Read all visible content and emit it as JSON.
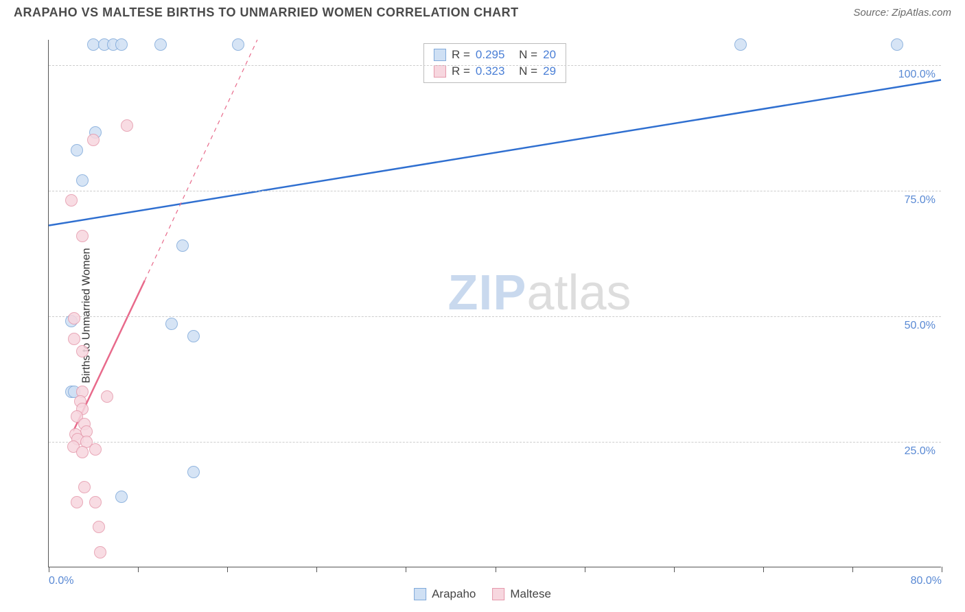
{
  "header": {
    "title": "ARAPAHO VS MALTESE BIRTHS TO UNMARRIED WOMEN CORRELATION CHART",
    "source_prefix": "Source: ",
    "source_name": "ZipAtlas.com"
  },
  "watermark": {
    "part1": "ZIP",
    "part2": "atlas"
  },
  "axes": {
    "ylabel": "Births to Unmarried Women",
    "x_min": 0,
    "x_max": 80,
    "y_min": 0,
    "y_max": 105,
    "y_gridlines": [
      25,
      50,
      75,
      100
    ],
    "y_tick_labels": [
      "25.0%",
      "50.0%",
      "75.0%",
      "100.0%"
    ],
    "x_ticks": [
      0,
      8,
      16,
      24,
      32,
      40,
      48,
      56,
      64,
      72,
      80
    ],
    "x_tick_labels": {
      "0": "0.0%",
      "80": "80.0%"
    },
    "grid_color": "#cccccc",
    "axis_color": "#555555",
    "tick_label_color": "#5989d4"
  },
  "series": [
    {
      "name": "Arapaho",
      "marker_fill": "#cfe0f4",
      "marker_stroke": "#7fa9da",
      "marker_radius": 9,
      "line_color": "#2f6fd0",
      "line_style": "solid",
      "line_width": 2.5,
      "R": "0.295",
      "N": "20",
      "trend": {
        "x1": 0,
        "y1": 68,
        "x2": 80,
        "y2": 97
      },
      "points": [
        [
          4,
          104
        ],
        [
          5,
          104
        ],
        [
          5.8,
          104
        ],
        [
          6.5,
          104
        ],
        [
          10,
          104
        ],
        [
          17,
          104
        ],
        [
          62,
          104
        ],
        [
          76,
          104
        ],
        [
          4.2,
          86.5
        ],
        [
          2.5,
          83
        ],
        [
          3,
          77
        ],
        [
          12,
          64
        ],
        [
          2,
          49
        ],
        [
          11,
          48.5
        ],
        [
          13,
          46
        ],
        [
          2,
          35
        ],
        [
          2.3,
          35
        ],
        [
          13,
          19
        ],
        [
          6.5,
          14
        ]
      ]
    },
    {
      "name": "Maltese",
      "marker_fill": "#f7d7df",
      "marker_stroke": "#e598ab",
      "marker_radius": 9,
      "line_color": "#e86a8b",
      "line_style": "solid_with_dashed_extension",
      "line_width": 2.5,
      "R": "0.323",
      "N": "29",
      "trend_solid": {
        "x1": 2.2,
        "y1": 27,
        "x2": 8.6,
        "y2": 57
      },
      "trend_dashed": {
        "x1": 8.6,
        "y1": 57,
        "x2": 18.7,
        "y2": 105
      },
      "points": [
        [
          7,
          88
        ],
        [
          4,
          85
        ],
        [
          2,
          73
        ],
        [
          3,
          66
        ],
        [
          2.3,
          49.5
        ],
        [
          2.3,
          45.5
        ],
        [
          3,
          43
        ],
        [
          3,
          35
        ],
        [
          5.2,
          34
        ],
        [
          2.8,
          33
        ],
        [
          3,
          31.5
        ],
        [
          2.5,
          30
        ],
        [
          3.2,
          28.5
        ],
        [
          3.4,
          27
        ],
        [
          2.4,
          26.5
        ],
        [
          2.6,
          25.5
        ],
        [
          3.4,
          25
        ],
        [
          2.2,
          24
        ],
        [
          3,
          23
        ],
        [
          4.2,
          23.5
        ],
        [
          3.2,
          16
        ],
        [
          4.2,
          13
        ],
        [
          2.5,
          13
        ],
        [
          4.5,
          8
        ],
        [
          4.6,
          3
        ]
      ]
    }
  ],
  "stats_box": {
    "r_label": "R =",
    "n_label": "N ="
  },
  "legend": {
    "items": [
      "Arapaho",
      "Maltese"
    ]
  },
  "style": {
    "background": "#ffffff",
    "title_color": "#4a4a4a",
    "title_fontsize": 18,
    "source_color": "#6a6a6a",
    "stat_value_color": "#4a7fd6"
  }
}
